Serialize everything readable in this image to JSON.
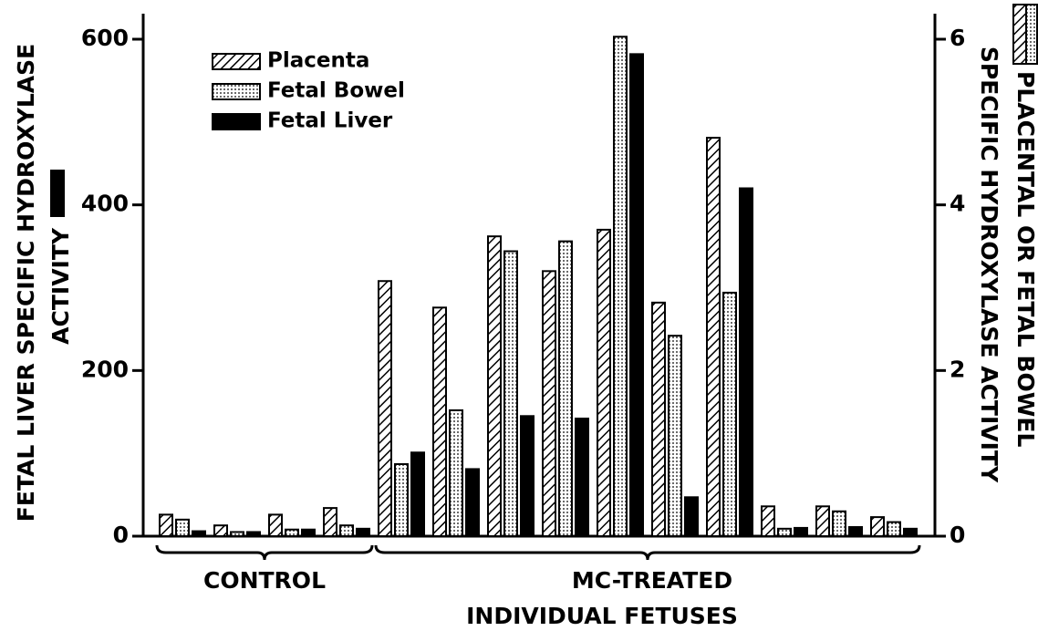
{
  "chart_data": {
    "type": "bar",
    "ylabel": [
      "FETAL LIVER SPECIFIC HYDROXYLASE",
      "ACTIVITY"
    ],
    "y2label": [
      "PLACENTAL OR FETAL BOWEL",
      "SPECIFIC HYDROXYLASE ACTIVITY"
    ],
    "xlabel": "INDIVIDUAL FETUSES",
    "annotations": [
      "CONTROL",
      "MC-TREATED"
    ],
    "categories": [
      null,
      null,
      null,
      null,
      null,
      null,
      null,
      null,
      null,
      null,
      null,
      null,
      null,
      null
    ],
    "series": [
      {
        "name": "Placenta",
        "color": "#000000",
        "pattern": "hatch",
        "axis": "y2",
        "values": [
          0.26,
          0.13,
          0.26,
          0.34,
          3.08,
          2.76,
          3.62,
          3.2,
          3.7,
          2.82,
          4.81,
          0.36,
          0.36,
          0.23
        ]
      },
      {
        "name": "Fetal Bowel",
        "color": "#000000",
        "pattern": "dots",
        "axis": "y2",
        "values": [
          0.2,
          0.05,
          0.08,
          0.13,
          0.87,
          1.52,
          3.44,
          3.56,
          6.03,
          2.42,
          2.94,
          0.09,
          0.3,
          0.17
        ]
      },
      {
        "name": "Fetal Liver",
        "color": "#000000",
        "pattern": "solid",
        "axis": "y",
        "values": [
          6,
          5,
          8,
          9,
          101,
          81,
          145,
          142,
          582,
          47,
          420,
          10,
          11,
          9
        ]
      }
    ],
    "ylim": [
      0,
      600
    ],
    "yticks": [
      0,
      200,
      400,
      600
    ],
    "y2lim": [
      0,
      6
    ],
    "y2ticks": [
      0,
      2,
      4,
      6
    ],
    "legend": "upper left",
    "grid": false
  }
}
